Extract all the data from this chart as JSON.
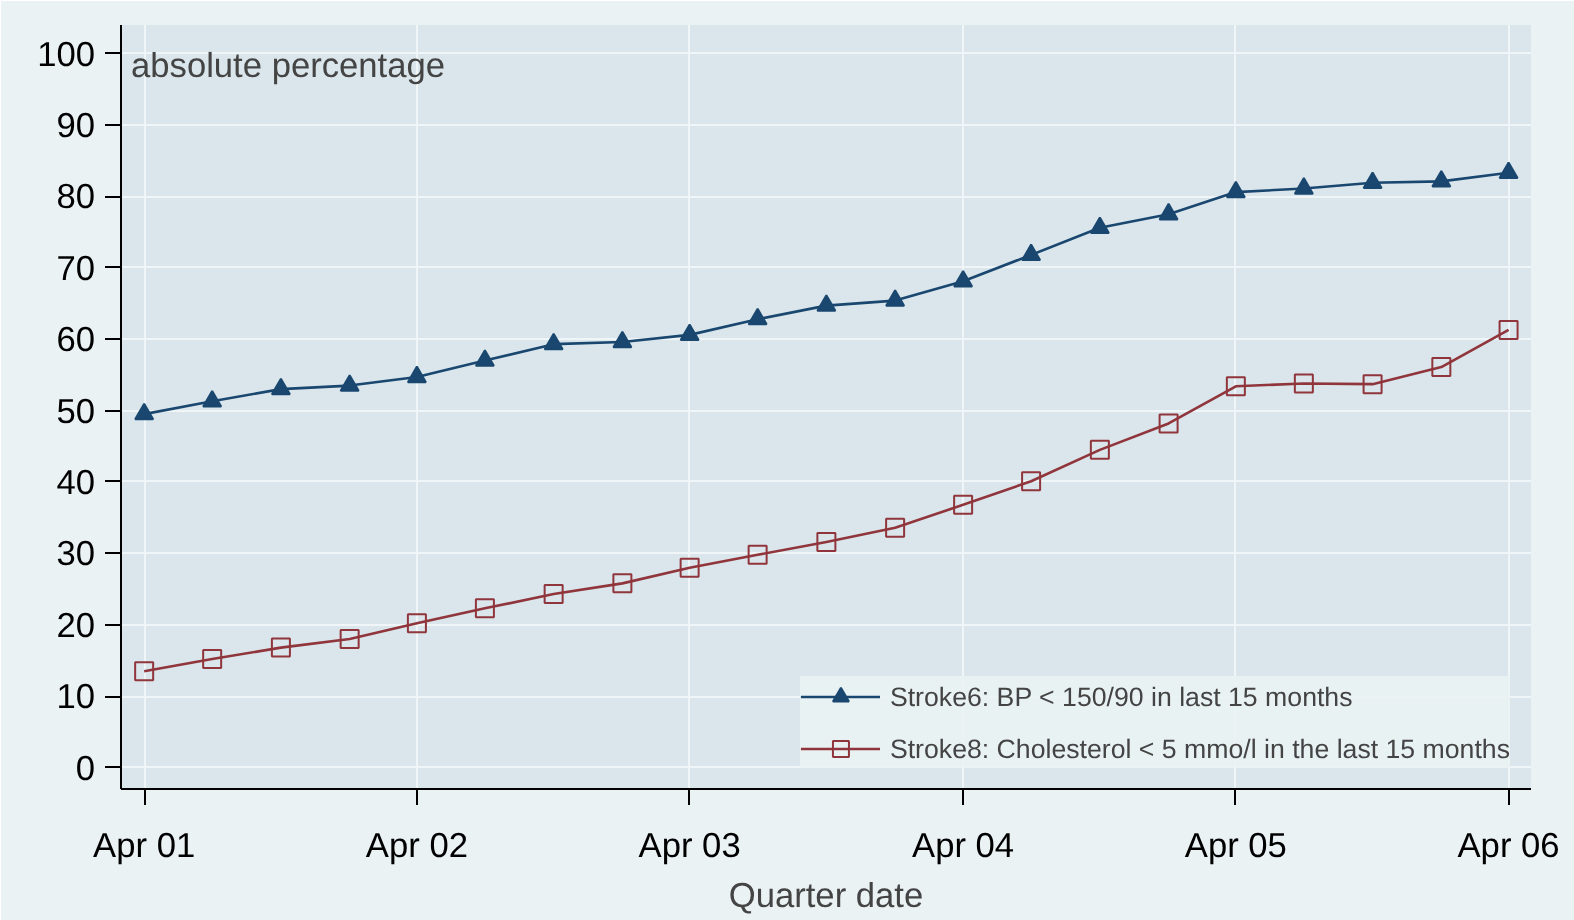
{
  "chart_data": {
    "type": "line",
    "xlabel": "Quarter date",
    "ylabel": "absolute percentage",
    "x": [
      "2001-04",
      "2001-07",
      "2001-10",
      "2002-01",
      "2002-04",
      "2002-07",
      "2002-10",
      "2003-01",
      "2003-04",
      "2003-07",
      "2003-10",
      "2004-01",
      "2004-04",
      "2004-07",
      "2004-10",
      "2005-01",
      "2005-04",
      "2005-07",
      "2005-10",
      "2006-01",
      "2006-04"
    ],
    "series": [
      {
        "name": "Stroke6: BP < 150/90 in last 15 months",
        "color": "#1a476f",
        "marker": "triangle",
        "values": [
          49.5,
          51.3,
          53,
          53.5,
          54.7,
          57,
          59.3,
          59.6,
          60.6,
          62.8,
          64.7,
          65.4,
          68.1,
          71.8,
          75.6,
          77.5,
          80.6,
          81.1,
          81.9,
          82.1,
          83.3
        ]
      },
      {
        "name": "Stroke8: Cholesterol < 5 mmo/l in the last 15 months",
        "color": "#90353b",
        "marker": "square",
        "values": [
          13.5,
          15.2,
          16.8,
          18,
          20.2,
          22.3,
          24.3,
          25.8,
          28,
          29.8,
          31.6,
          33.6,
          36.8,
          40.1,
          44.5,
          48.2,
          53.4,
          53.8,
          53.7,
          56.1,
          61.3
        ]
      }
    ],
    "ylim": [
      -3,
      104
    ],
    "yticks": [
      0,
      10,
      20,
      30,
      40,
      50,
      60,
      70,
      80,
      90,
      100
    ],
    "xlim": [
      "2001-03",
      "2006-05"
    ],
    "xticks": [
      {
        "value": "2001-04",
        "label": "Apr 01"
      },
      {
        "value": "2002-04",
        "label": "Apr 02"
      },
      {
        "value": "2003-04",
        "label": "Apr 03"
      },
      {
        "value": "2004-04",
        "label": "Apr 04"
      },
      {
        "value": "2005-04",
        "label": "Apr 05"
      },
      {
        "value": "2006-04",
        "label": "Apr 06"
      }
    ],
    "grid": true,
    "legend": "bottom right",
    "line_style": "solid"
  }
}
